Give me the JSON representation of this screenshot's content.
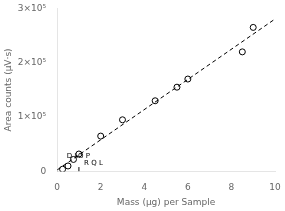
{
  "chart_data": {
    "type": "scatter",
    "xlabel": "Mass (μg) per Sample",
    "ylabel": "Area counts (μV·s)",
    "series": [
      {
        "type": "line",
        "x": [
          0,
          10
        ],
        "values": [
          2625.29,
          280459.87
        ],
        "color": "black",
        "line_style": "dashed"
      },
      {
        "type": "scatter",
        "x": [
          0.25,
          0.5,
          0.75,
          1.0,
          2.0,
          3.0,
          4.5,
          5.5,
          6.0,
          8.5,
          9.0
        ],
        "values": [
          4000,
          10000,
          22000,
          32000,
          65000,
          95000,
          130000,
          155000,
          170000,
          220000,
          265000
        ],
        "color": "black",
        "marker": "circle"
      },
      {
        "type": "line",
        "x": [
          0.3,
          0.3
        ],
        "values": [
          0,
          12000
        ],
        "color": "black",
        "line_style": "solid"
      },
      {
        "type": "line",
        "x": [
          1.0,
          1.0
        ],
        "values": [
          0,
          8000
        ],
        "color": "black",
        "line_style": "solid"
      }
    ],
    "annotations": [
      {
        "text": "D LO P",
        "x": 0.3,
        "y": 22000
      },
      {
        "text": "R Q L",
        "x": 1.1,
        "y": 8000
      }
    ],
    "xlim": [
      0,
      10
    ],
    "ylim": [
      0,
      300000
    ],
    "xticks": [
      0,
      2,
      4,
      6,
      8,
      10
    ],
    "yticks": [
      0,
      {
        "value": 100000,
        "label": "1×10⁵"
      },
      {
        "value": 200000,
        "label": "2×10⁵"
      },
      {
        "value": 300000,
        "label": "3×10⁵"
      }
    ],
    "grid": false
  }
}
